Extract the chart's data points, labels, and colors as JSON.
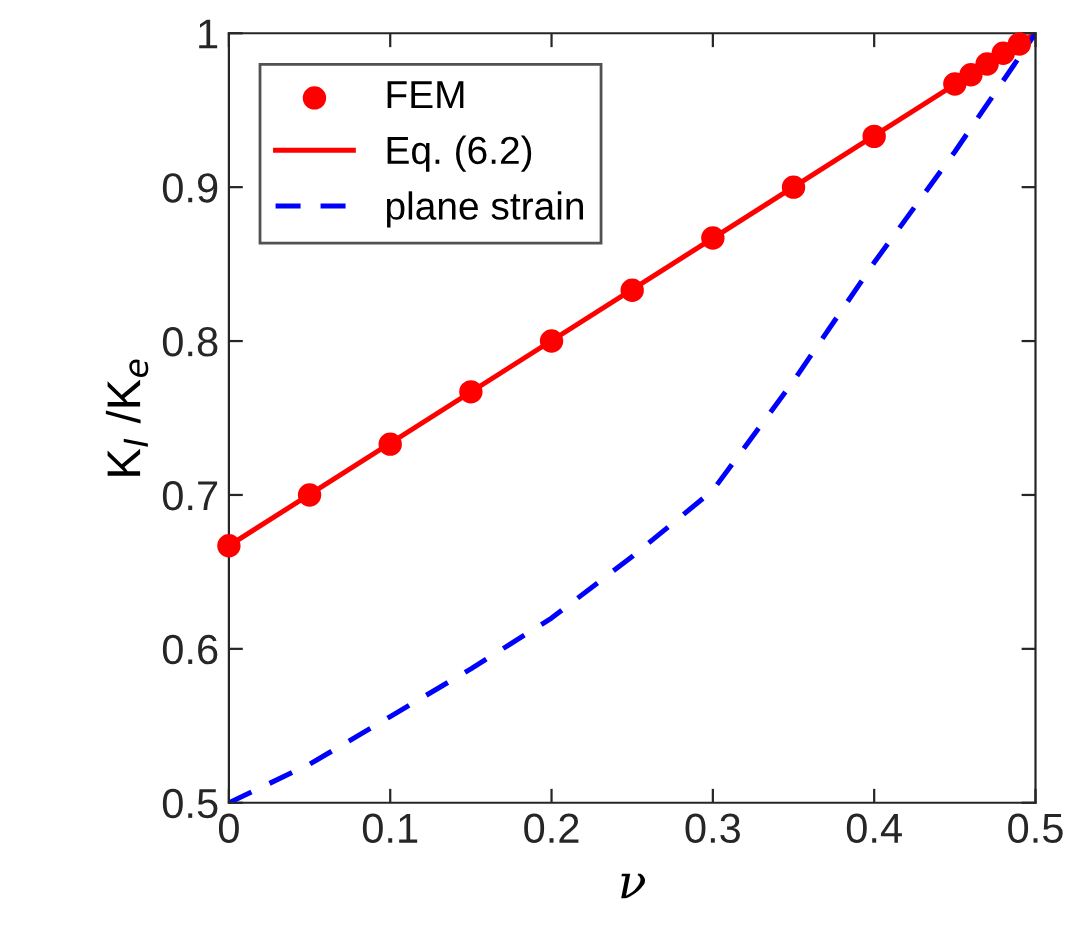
{
  "chart_data": {
    "type": "line",
    "xlabel": "ν",
    "ylabel": "K$_{I}$ /K$_{e}$",
    "xlim": [
      0,
      0.5
    ],
    "ylim": [
      0.5,
      1
    ],
    "xticks": [
      0,
      0.1,
      0.2,
      0.3,
      0.4,
      0.5
    ],
    "yticks": [
      0.5,
      0.6,
      0.7,
      0.8,
      0.9,
      1
    ],
    "grid": false,
    "legend": "top left",
    "series": [
      {
        "name": "FEM",
        "type": "scatter",
        "marker": "circle",
        "color": "#ff0000",
        "x": [
          0,
          0.05,
          0.1,
          0.15,
          0.2,
          0.25,
          0.3,
          0.35,
          0.4,
          0.45,
          0.46,
          0.47,
          0.48,
          0.49
        ],
        "values": [
          0.667,
          0.7,
          0.733,
          0.767,
          0.8,
          0.833,
          0.867,
          0.9,
          0.933,
          0.967,
          0.973,
          0.98,
          0.987,
          0.993
        ]
      },
      {
        "name": "Eq. (6.2)",
        "line_style": "solid",
        "color": "#ff0000",
        "x": [
          0,
          0.5
        ],
        "values": [
          0.667,
          1.0
        ]
      },
      {
        "name": "plane strain",
        "line_style": "dashed",
        "color": "#0000ff",
        "x": [
          0,
          0.05,
          0.1,
          0.15,
          0.2,
          0.25,
          0.3,
          0.35,
          0.4,
          0.45,
          0.5
        ],
        "values": [
          0.5,
          0.525,
          0.556,
          0.587,
          0.62,
          0.66,
          0.703,
          0.774,
          0.851,
          0.923,
          1.0
        ]
      }
    ]
  }
}
